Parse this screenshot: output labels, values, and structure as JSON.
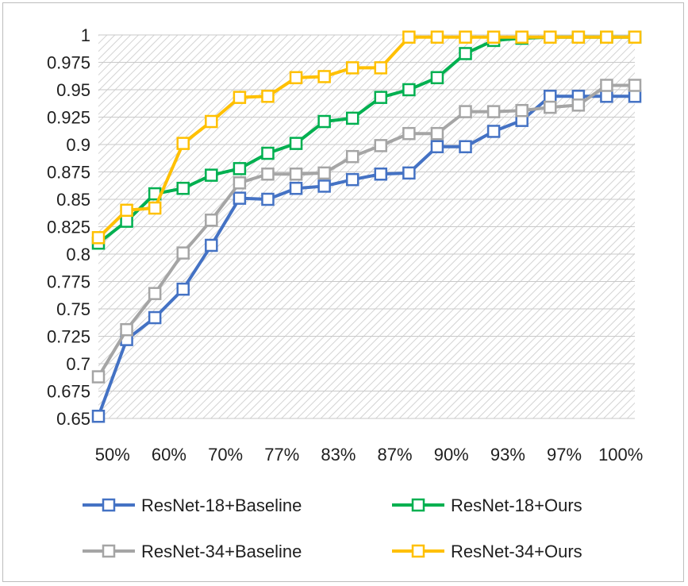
{
  "chart_data": {
    "type": "line",
    "title": "",
    "xlabel": "",
    "ylabel": "",
    "ylim": [
      0.65,
      1.0
    ],
    "y_ticks": [
      "0.65",
      "0.675",
      "0.7",
      "0.725",
      "0.75",
      "0.775",
      "0.8",
      "0.825",
      "0.85",
      "0.875",
      "0.9",
      "0.925",
      "0.95",
      "0.975",
      "1"
    ],
    "x_tick_labels": [
      "50%",
      "60%",
      "70%",
      "77%",
      "83%",
      "87%",
      "90%",
      "93%",
      "97%",
      "100%"
    ],
    "num_points": 20,
    "grid": true,
    "legend_position": "bottom",
    "series": [
      {
        "name": "ResNet-18+Baseline",
        "color": "#4472C4",
        "values": [
          0.652,
          0.722,
          0.742,
          0.768,
          0.808,
          0.851,
          0.85,
          0.86,
          0.862,
          0.868,
          0.873,
          0.874,
          0.898,
          0.898,
          0.912,
          0.922,
          0.944,
          0.944,
          0.944,
          0.944
        ]
      },
      {
        "name": "ResNet-18+Ours",
        "color": "#00B050",
        "values": [
          0.81,
          0.83,
          0.855,
          0.86,
          0.872,
          0.878,
          0.892,
          0.901,
          0.921,
          0.924,
          0.943,
          0.95,
          0.961,
          0.983,
          0.995,
          0.997,
          0.998,
          0.998,
          0.998,
          0.998
        ]
      },
      {
        "name": "ResNet-34+Baseline",
        "color": "#A5A5A5",
        "values": [
          0.688,
          0.731,
          0.764,
          0.801,
          0.831,
          0.865,
          0.873,
          0.873,
          0.874,
          0.889,
          0.899,
          0.91,
          0.91,
          0.93,
          0.93,
          0.931,
          0.934,
          0.936,
          0.954,
          0.954
        ]
      },
      {
        "name": "ResNet-34+Ours",
        "color": "#FFC000",
        "values": [
          0.815,
          0.84,
          0.842,
          0.901,
          0.921,
          0.943,
          0.944,
          0.961,
          0.962,
          0.97,
          0.97,
          0.998,
          0.998,
          0.998,
          0.998,
          0.998,
          0.998,
          0.998,
          0.998,
          0.998
        ]
      }
    ]
  }
}
